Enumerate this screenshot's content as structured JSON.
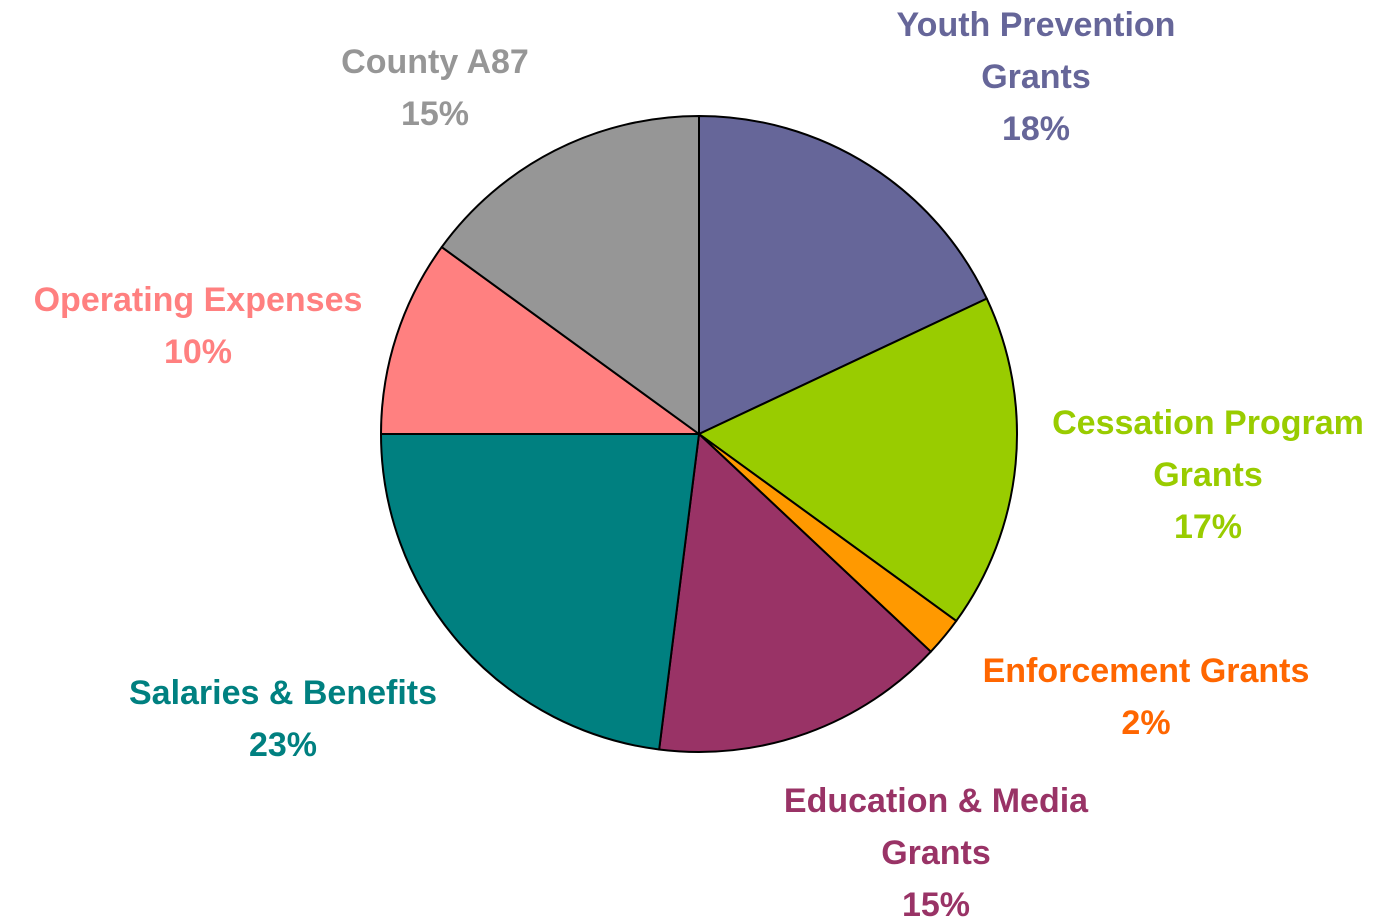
{
  "chart_data": {
    "type": "pie",
    "title": "",
    "slices": [
      {
        "label_lines": [
          "Youth Prevention",
          "Grants"
        ],
        "value": 18,
        "value_label": "18%",
        "color": "#666699"
      },
      {
        "label_lines": [
          "Cessation Program",
          "Grants"
        ],
        "value": 17,
        "value_label": "17%",
        "color": "#99CC00"
      },
      {
        "label_lines": [
          "Enforcement Grants"
        ],
        "value": 2,
        "value_label": "2%",
        "color": "#FF9900"
      },
      {
        "label_lines": [
          "Education & Media",
          "Grants"
        ],
        "value": 15,
        "value_label": "15%",
        "color": "#993366"
      },
      {
        "label_lines": [
          "Salaries & Benefits"
        ],
        "value": 23,
        "value_label": "23%",
        "color": "#008080"
      },
      {
        "label_lines": [
          "Operating Expenses"
        ],
        "value": 10,
        "value_label": "10%",
        "color": "#FF8080"
      },
      {
        "label_lines": [
          "County A87"
        ],
        "value": 15,
        "value_label": "15%",
        "color": "#969696"
      }
    ],
    "label_colors": [
      "#666699",
      "#99CC00",
      "#FF6600",
      "#993366",
      "#008080",
      "#FF8080",
      "#969696"
    ],
    "start_angle": "12 o'clock",
    "direction": "clockwise",
    "legend": "none"
  }
}
